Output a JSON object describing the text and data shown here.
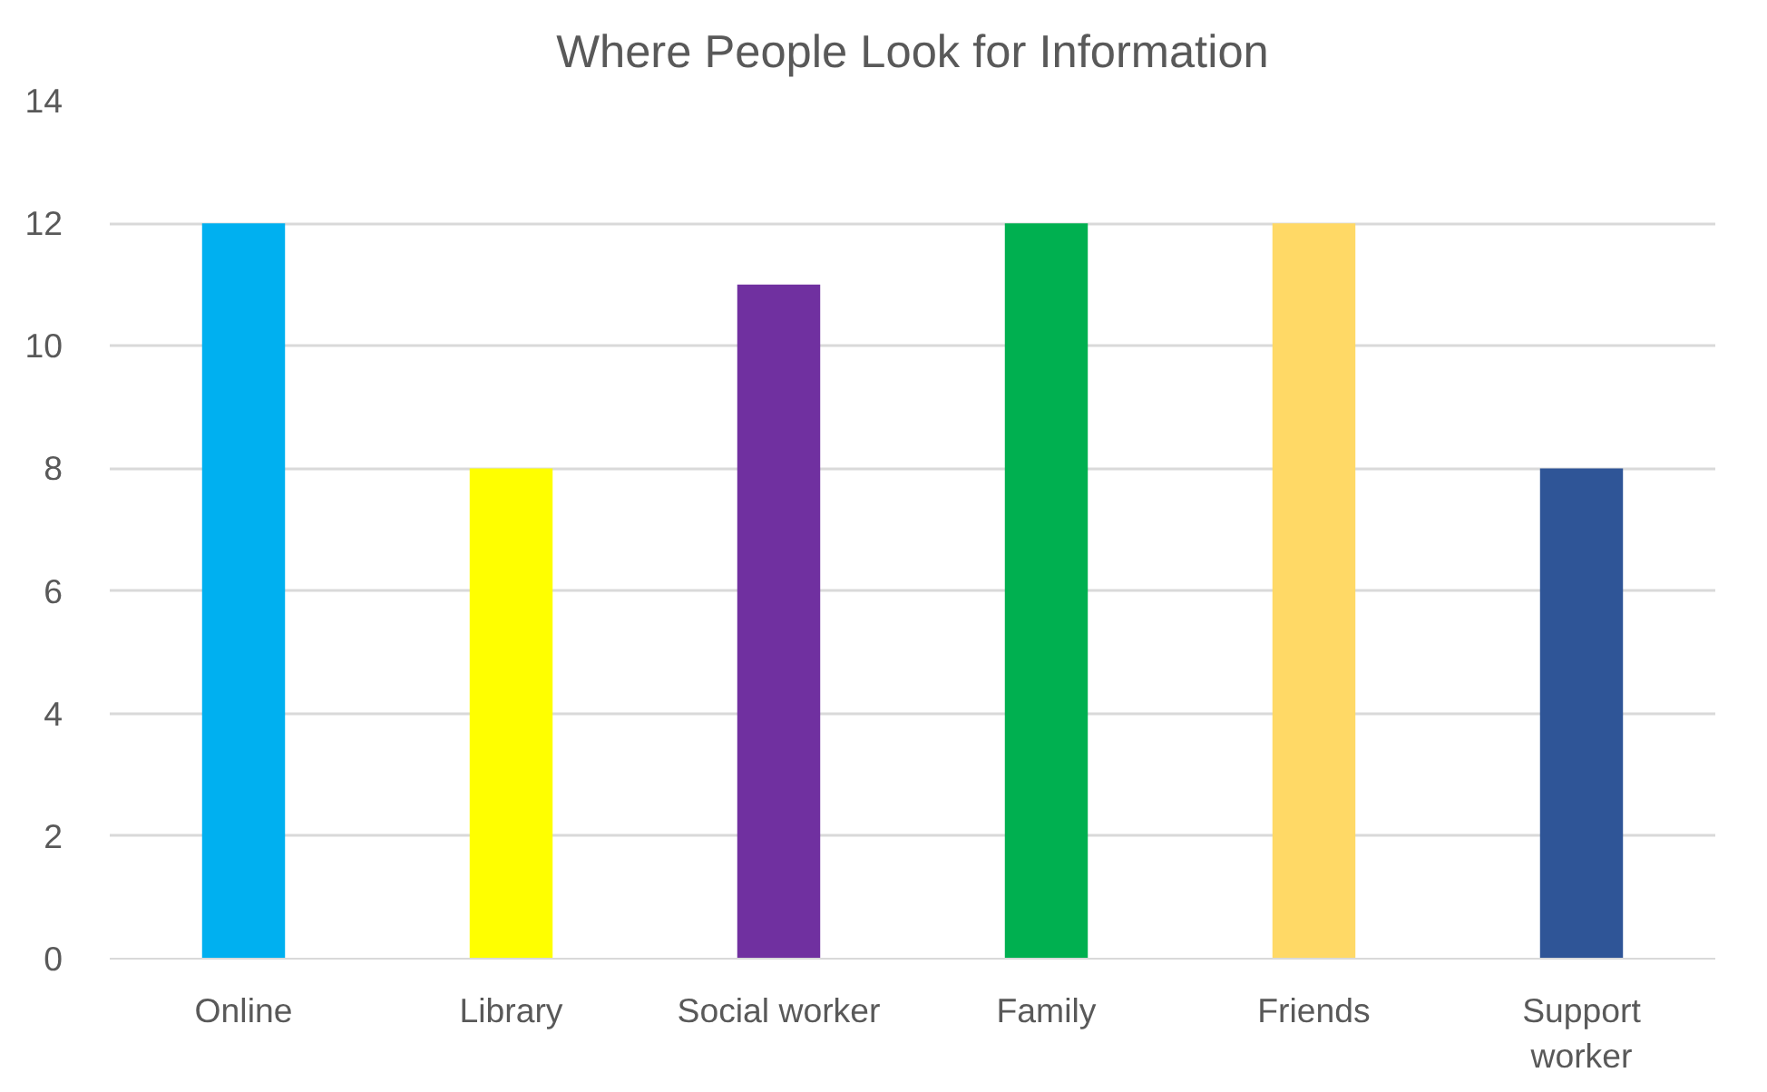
{
  "chart_data": {
    "type": "bar",
    "title": "Where People Look for Information",
    "categories": [
      "Online",
      "Library",
      "Social worker",
      "Family",
      "Friends",
      "Support worker"
    ],
    "values": [
      12,
      8,
      11,
      12,
      12,
      8
    ],
    "colors": [
      "#00b0f0",
      "#ffff00",
      "#7030a0",
      "#00b050",
      "#ffd966",
      "#2f5597"
    ],
    "ylim": [
      0,
      14
    ],
    "yticks": [
      0,
      2,
      4,
      6,
      8,
      10,
      12,
      14
    ],
    "grid": "y"
  }
}
